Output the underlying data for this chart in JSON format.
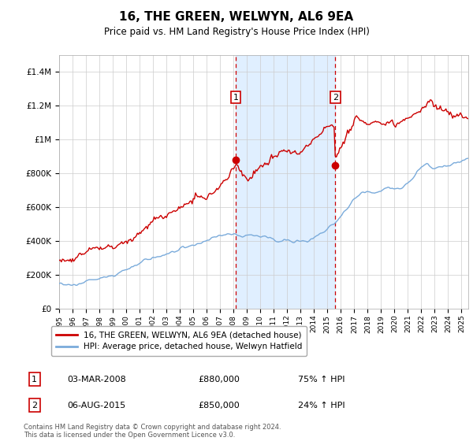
{
  "title": "16, THE GREEN, WELWYN, AL6 9EA",
  "subtitle": "Price paid vs. HM Land Registry's House Price Index (HPI)",
  "legend_line1": "16, THE GREEN, WELWYN, AL6 9EA (detached house)",
  "legend_line2": "HPI: Average price, detached house, Welwyn Hatfield",
  "sale1_date": "03-MAR-2008",
  "sale1_price": "£880,000",
  "sale1_hpi": "75% ↑ HPI",
  "sale1_year": 2008.17,
  "sale1_value": 880000,
  "sale2_date": "06-AUG-2015",
  "sale2_price": "£850,000",
  "sale2_hpi": "24% ↑ HPI",
  "sale2_year": 2015.58,
  "sale2_value": 850000,
  "red_color": "#cc0000",
  "blue_color": "#7aabdb",
  "shade_color": "#ddeeff",
  "footer": "Contains HM Land Registry data © Crown copyright and database right 2024.\nThis data is licensed under the Open Government Licence v3.0.",
  "ylim": [
    0,
    1500000
  ],
  "xlim_start": 1995.0,
  "xlim_end": 2025.5,
  "yticks": [
    0,
    200000,
    400000,
    600000,
    800000,
    1000000,
    1200000,
    1400000
  ],
  "ylabels": [
    "£0",
    "£200K",
    "£400K",
    "£600K",
    "£800K",
    "£1M",
    "£1.2M",
    "£1.4M"
  ],
  "hpi_waypoints": [
    [
      1995.0,
      148000
    ],
    [
      1996.0,
      158000
    ],
    [
      1997.0,
      168000
    ],
    [
      1998.0,
      185000
    ],
    [
      1999.0,
      205000
    ],
    [
      2000.0,
      235000
    ],
    [
      2001.0,
      265000
    ],
    [
      2002.0,
      295000
    ],
    [
      2003.0,
      320000
    ],
    [
      2004.0,
      340000
    ],
    [
      2005.0,
      355000
    ],
    [
      2006.0,
      375000
    ],
    [
      2007.0,
      405000
    ],
    [
      2008.0,
      420000
    ],
    [
      2008.5,
      415000
    ],
    [
      2009.0,
      400000
    ],
    [
      2009.5,
      395000
    ],
    [
      2010.0,
      390000
    ],
    [
      2010.5,
      395000
    ],
    [
      2011.0,
      390000
    ],
    [
      2011.5,
      385000
    ],
    [
      2012.0,
      385000
    ],
    [
      2012.5,
      390000
    ],
    [
      2013.0,
      395000
    ],
    [
      2013.5,
      405000
    ],
    [
      2014.0,
      430000
    ],
    [
      2014.5,
      455000
    ],
    [
      2015.0,
      480000
    ],
    [
      2015.5,
      510000
    ],
    [
      2016.0,
      560000
    ],
    [
      2016.5,
      600000
    ],
    [
      2017.0,
      640000
    ],
    [
      2017.5,
      660000
    ],
    [
      2018.0,
      670000
    ],
    [
      2018.5,
      675000
    ],
    [
      2019.0,
      680000
    ],
    [
      2019.5,
      690000
    ],
    [
      2020.0,
      695000
    ],
    [
      2020.5,
      700000
    ],
    [
      2021.0,
      730000
    ],
    [
      2021.5,
      790000
    ],
    [
      2022.0,
      840000
    ],
    [
      2022.5,
      855000
    ],
    [
      2023.0,
      840000
    ],
    [
      2023.5,
      845000
    ],
    [
      2024.0,
      855000
    ],
    [
      2024.5,
      870000
    ],
    [
      2025.0,
      880000
    ],
    [
      2025.5,
      890000
    ]
  ],
  "red_waypoints": [
    [
      1995.0,
      295000
    ],
    [
      1995.5,
      300000
    ],
    [
      1996.0,
      310000
    ],
    [
      1996.5,
      320000
    ],
    [
      1997.0,
      335000
    ],
    [
      1997.5,
      350000
    ],
    [
      1998.0,
      370000
    ],
    [
      1998.5,
      390000
    ],
    [
      1999.0,
      410000
    ],
    [
      1999.5,
      430000
    ],
    [
      2000.0,
      460000
    ],
    [
      2000.5,
      490000
    ],
    [
      2001.0,
      520000
    ],
    [
      2001.5,
      555000
    ],
    [
      2002.0,
      590000
    ],
    [
      2002.5,
      620000
    ],
    [
      2003.0,
      645000
    ],
    [
      2003.5,
      665000
    ],
    [
      2004.0,
      680000
    ],
    [
      2004.5,
      695000
    ],
    [
      2005.0,
      710000
    ],
    [
      2005.5,
      725000
    ],
    [
      2006.0,
      745000
    ],
    [
      2006.5,
      770000
    ],
    [
      2007.0,
      800000
    ],
    [
      2007.5,
      830000
    ],
    [
      2008.0,
      855000
    ],
    [
      2008.17,
      880000
    ],
    [
      2008.5,
      820000
    ],
    [
      2009.0,
      760000
    ],
    [
      2009.5,
      790000
    ],
    [
      2010.0,
      810000
    ],
    [
      2010.5,
      825000
    ],
    [
      2011.0,
      840000
    ],
    [
      2011.5,
      860000
    ],
    [
      2012.0,
      870000
    ],
    [
      2012.5,
      880000
    ],
    [
      2013.0,
      900000
    ],
    [
      2013.5,
      920000
    ],
    [
      2014.0,
      950000
    ],
    [
      2014.5,
      970000
    ],
    [
      2015.0,
      990000
    ],
    [
      2015.5,
      1020000
    ],
    [
      2015.58,
      850000
    ],
    [
      2016.0,
      900000
    ],
    [
      2016.5,
      960000
    ],
    [
      2017.0,
      1000000
    ],
    [
      2017.5,
      1020000
    ],
    [
      2018.0,
      1040000
    ],
    [
      2018.5,
      1050000
    ],
    [
      2019.0,
      1060000
    ],
    [
      2019.5,
      1070000
    ],
    [
      2020.0,
      1060000
    ],
    [
      2020.5,
      1070000
    ],
    [
      2021.0,
      1090000
    ],
    [
      2021.5,
      1120000
    ],
    [
      2022.0,
      1180000
    ],
    [
      2022.5,
      1220000
    ],
    [
      2023.0,
      1200000
    ],
    [
      2023.5,
      1180000
    ],
    [
      2024.0,
      1160000
    ],
    [
      2024.5,
      1140000
    ],
    [
      2025.0,
      1130000
    ],
    [
      2025.5,
      1120000
    ]
  ]
}
